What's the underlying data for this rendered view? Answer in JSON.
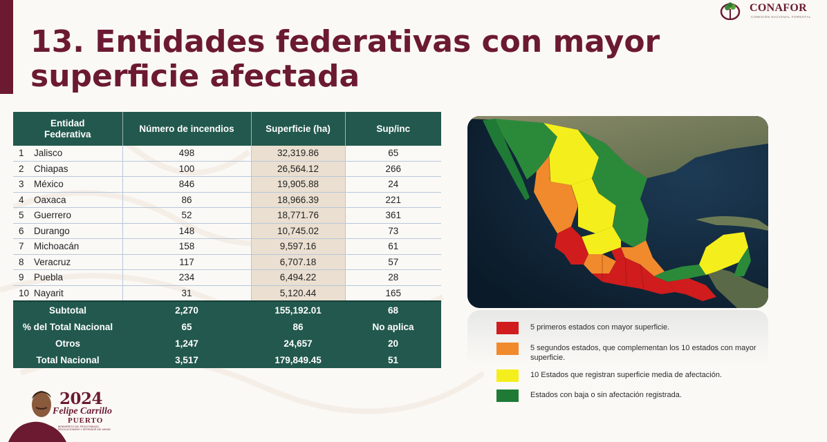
{
  "header": {
    "title": "13. Entidades federativas con mayor superficie afectada",
    "logo_name": "CONAFOR",
    "logo_subtitle": "COMISIÓN NACIONAL FORESTAL"
  },
  "table": {
    "headers": [
      "Entidad Federativa",
      "Número de incendios",
      "Superficie (ha)",
      "Sup/inc"
    ],
    "rows": [
      {
        "rank": "1",
        "entity": "Jalisco",
        "fires": "498",
        "area": "32,319.86",
        "ratio": "65"
      },
      {
        "rank": "2",
        "entity": "Chiapas",
        "fires": "100",
        "area": "26,564.12",
        "ratio": "266"
      },
      {
        "rank": "3",
        "entity": "México",
        "fires": "846",
        "area": "19,905.88",
        "ratio": "24"
      },
      {
        "rank": "4",
        "entity": "Oaxaca",
        "fires": "86",
        "area": "18,966.39",
        "ratio": "221"
      },
      {
        "rank": "5",
        "entity": "Guerrero",
        "fires": "52",
        "area": "18,771.76",
        "ratio": "361"
      },
      {
        "rank": "6",
        "entity": "Durango",
        "fires": "148",
        "area": "10,745.02",
        "ratio": "73"
      },
      {
        "rank": "7",
        "entity": "Michoacán",
        "fires": "158",
        "area": "9,597.16",
        "ratio": "61"
      },
      {
        "rank": "8",
        "entity": "Veracruz",
        "fires": "117",
        "area": "6,707.18",
        "ratio": "57"
      },
      {
        "rank": "9",
        "entity": "Puebla",
        "fires": "234",
        "area": "6,494.22",
        "ratio": "28"
      },
      {
        "rank": "10",
        "entity": "Nayarit",
        "fires": "31",
        "area": "5,120.44",
        "ratio": "165"
      }
    ],
    "totals": [
      {
        "label": "Subtotal",
        "fires": "2,270",
        "area": "155,192.01",
        "ratio": "68"
      },
      {
        "label": "% del Total Nacional",
        "fires": "65",
        "area": "86",
        "ratio": "No aplica"
      },
      {
        "label": "Otros",
        "fires": "1,247",
        "area": "24,657",
        "ratio": "20"
      },
      {
        "label": "Total Nacional",
        "fires": "3,517",
        "area": "179,849.45",
        "ratio": "51"
      }
    ]
  },
  "legend": [
    {
      "color": "#d01c1c",
      "label": "5 primeros estados con mayor superficie."
    },
    {
      "color": "#f08a2c",
      "label": "5 segundos estados, que complementan los 10 estados con mayor superficie."
    },
    {
      "color": "#f4ef1c",
      "label": "10 Estados que registran superficie media de afectación."
    },
    {
      "color": "#1f7a36",
      "label": "Estados con baja o sin afectación registrada."
    }
  ],
  "footer": {
    "year": "2024",
    "name": "Felipe Carrillo",
    "place": "PUERTO",
    "fine_print": "BENEMÉRITO DEL PROLETARIADO, REVOLUCIONARIO Y DEFENSOR DEL MAYAB"
  },
  "colors": {
    "brand": "#6b1a31",
    "table_header": "#22584d",
    "area_highlight": "#eadfd0"
  }
}
